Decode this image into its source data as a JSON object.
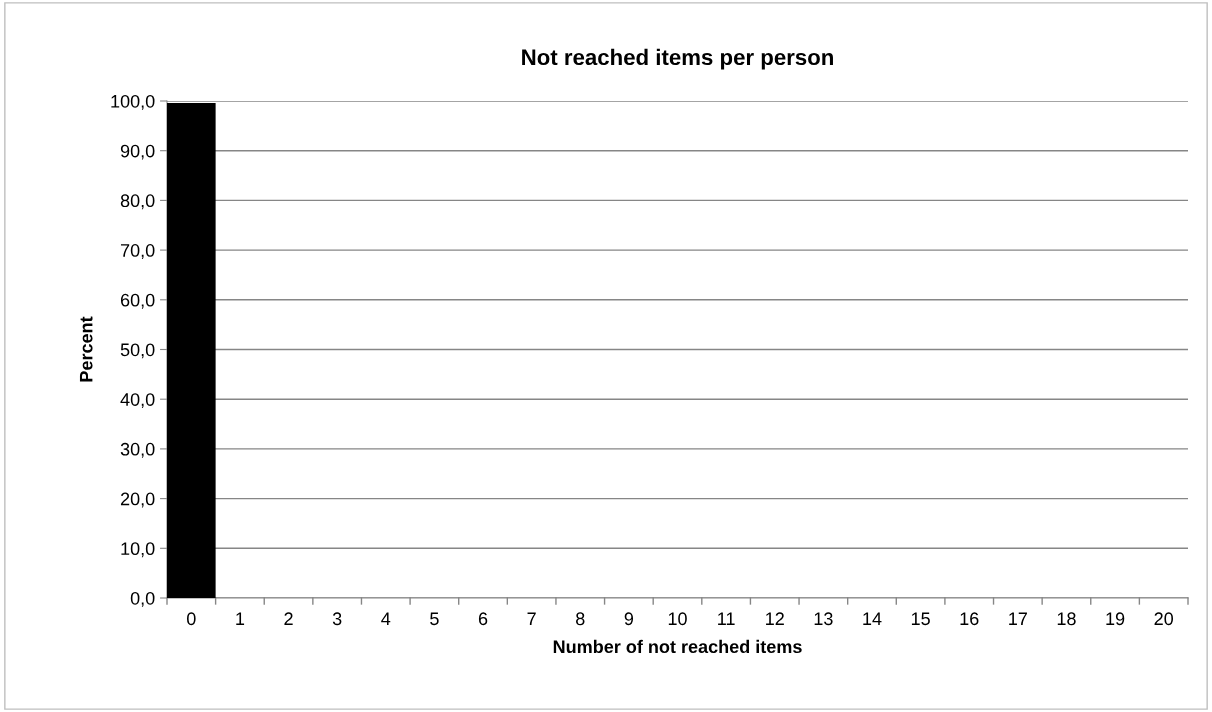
{
  "chart_data": {
    "type": "bar",
    "title": "Not reached items per person",
    "xlabel": "Number of not reached items",
    "ylabel": "Percent",
    "categories": [
      "0",
      "1",
      "2",
      "3",
      "4",
      "5",
      "6",
      "7",
      "8",
      "9",
      "10",
      "11",
      "12",
      "13",
      "14",
      "15",
      "16",
      "17",
      "18",
      "19",
      "20"
    ],
    "values": [
      99.6,
      0,
      0,
      0,
      0,
      0,
      0,
      0,
      0,
      0,
      0,
      0,
      0,
      0,
      0,
      0,
      0,
      0,
      0,
      0,
      0
    ],
    "color": "#000000",
    "ylim": [
      0,
      100
    ],
    "yticks": [
      {
        "value": 0,
        "label": "0,0"
      },
      {
        "value": 10,
        "label": "10,0"
      },
      {
        "value": 20,
        "label": "20,0"
      },
      {
        "value": 30,
        "label": "30,0"
      },
      {
        "value": 40,
        "label": "40,0"
      },
      {
        "value": 50,
        "label": "50,0"
      },
      {
        "value": 60,
        "label": "60,0"
      },
      {
        "value": 70,
        "label": "70,0"
      },
      {
        "value": 80,
        "label": "80,0"
      },
      {
        "value": 90,
        "label": "90,0"
      },
      {
        "value": 100,
        "label": "100,0"
      }
    ],
    "grid": "y",
    "legend": false
  }
}
